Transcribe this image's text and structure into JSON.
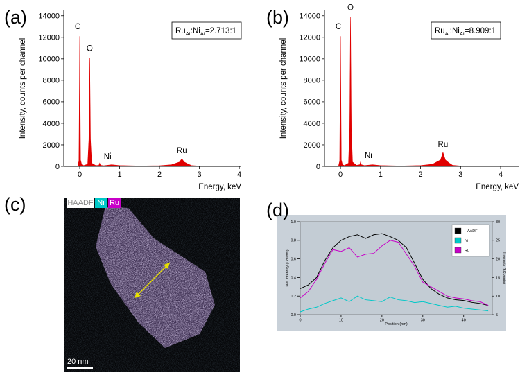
{
  "chart_data": [
    {
      "type": "area",
      "panel_label": "(a)",
      "x_label": "Energy, keV",
      "y_label": "Intensity, counts per channel",
      "color": "#e00000",
      "ratio_label": [
        "Ru",
        "At",
        ":Ni",
        "At",
        "=2.713:1"
      ],
      "annotations": [
        "C",
        "O",
        "Ni",
        "Ru"
      ],
      "x": [
        -0.4,
        -0.1,
        -0.05,
        -0.02,
        0,
        0.02,
        0.05,
        0.1,
        0.2,
        0.23,
        0.25,
        0.27,
        0.3,
        0.4,
        0.48,
        0.5,
        0.52,
        0.6,
        0.8,
        1.0,
        1.5,
        2.0,
        2.3,
        2.5,
        2.56,
        2.62,
        2.7,
        2.8,
        3.0,
        3.5,
        4.05
      ],
      "values": [
        0,
        0,
        20,
        500,
        12100,
        600,
        150,
        80,
        200,
        2500,
        10100,
        2500,
        300,
        80,
        100,
        300,
        100,
        60,
        150,
        80,
        40,
        60,
        150,
        400,
        700,
        400,
        250,
        80,
        30,
        10,
        0
      ],
      "xlim": [
        -0.4,
        4.05
      ],
      "xticks": [
        0,
        1,
        2,
        3,
        4
      ],
      "ylim": [
        0,
        14500
      ],
      "yticks": [
        0,
        2000,
        4000,
        6000,
        8000,
        10000,
        12000,
        14000
      ]
    },
    {
      "type": "area",
      "panel_label": "(b)",
      "x_label": "Energy, keV",
      "y_label": "Intensity, counts per channel",
      "color": "#e00000",
      "ratio_label": [
        "Ru",
        "At",
        ":Ni",
        "At",
        "=8.909:1"
      ],
      "annotations": [
        "C",
        "O",
        "Ni",
        "Ru"
      ],
      "x": [
        -0.4,
        -0.1,
        -0.05,
        -0.02,
        0,
        0.02,
        0.05,
        0.1,
        0.2,
        0.23,
        0.25,
        0.27,
        0.3,
        0.4,
        0.48,
        0.5,
        0.52,
        0.6,
        0.8,
        1.0,
        1.5,
        2.0,
        2.3,
        2.5,
        2.56,
        2.62,
        2.7,
        2.8,
        3.0,
        3.5,
        4.45
      ],
      "values": [
        0,
        0,
        20,
        500,
        12100,
        600,
        150,
        80,
        300,
        3500,
        13900,
        3500,
        400,
        100,
        150,
        400,
        150,
        80,
        150,
        80,
        40,
        80,
        200,
        600,
        1300,
        600,
        350,
        100,
        40,
        10,
        0
      ],
      "xlim": [
        -0.4,
        4.45
      ],
      "xticks": [
        0,
        1,
        2,
        3,
        4
      ],
      "ylim": [
        0,
        14500
      ],
      "yticks": [
        0,
        2000,
        4000,
        6000,
        8000,
        10000,
        12000,
        14000
      ]
    },
    {
      "type": "line",
      "panel_label": "(d)",
      "x_label": "Position (nm)",
      "y_label": "Net Intensity (Counts)",
      "y2_label": "Intensity (kCounts)",
      "legend": "upper right",
      "x": [
        0,
        2,
        4,
        6,
        8,
        10,
        12,
        14,
        16,
        18,
        20,
        22,
        24,
        26,
        28,
        30,
        32,
        34,
        36,
        38,
        40,
        42,
        44,
        46
      ],
      "series": [
        {
          "name": "HAADF",
          "color": "#000000",
          "axis": "y2",
          "values": [
            12.0,
            13.0,
            15.0,
            19.5,
            23.0,
            25.0,
            26.0,
            26.5,
            25.5,
            26.5,
            26.8,
            26.0,
            25.0,
            23.0,
            18.8,
            14.5,
            12.0,
            10.5,
            9.5,
            9.0,
            8.8,
            8.3,
            8.0,
            7.5
          ]
        },
        {
          "name": "Ni",
          "color": "#00c8c8",
          "values": [
            0.03,
            0.06,
            0.08,
            0.12,
            0.15,
            0.18,
            0.14,
            0.2,
            0.16,
            0.15,
            0.14,
            0.19,
            0.16,
            0.15,
            0.13,
            0.14,
            0.12,
            0.1,
            0.08,
            0.09,
            0.07,
            0.06,
            0.05,
            0.04
          ]
        },
        {
          "name": "Ru",
          "color": "#c800c8",
          "values": [
            0.18,
            0.25,
            0.38,
            0.55,
            0.7,
            0.68,
            0.72,
            0.62,
            0.65,
            0.66,
            0.74,
            0.8,
            0.78,
            0.65,
            0.52,
            0.35,
            0.3,
            0.25,
            0.2,
            0.18,
            0.17,
            0.15,
            0.14,
            0.1
          ]
        }
      ],
      "xlim": [
        0,
        47
      ],
      "xticks": [
        0,
        10,
        20,
        30,
        40
      ],
      "ylim": [
        0,
        1
      ],
      "yticks": [
        {
          "value": 0,
          "label": "0.0"
        },
        0.2,
        0.4,
        0.6,
        0.8,
        {
          "value": 1,
          "label": "1.0"
        }
      ],
      "y2lim": [
        5,
        30
      ],
      "y2ticks": [
        5,
        10,
        15,
        20,
        25,
        30
      ]
    }
  ],
  "image": {
    "panel_label": "(c)",
    "legend": [
      "HAADF",
      "Ni",
      "Ru"
    ],
    "scale_bar": "20 nm"
  }
}
